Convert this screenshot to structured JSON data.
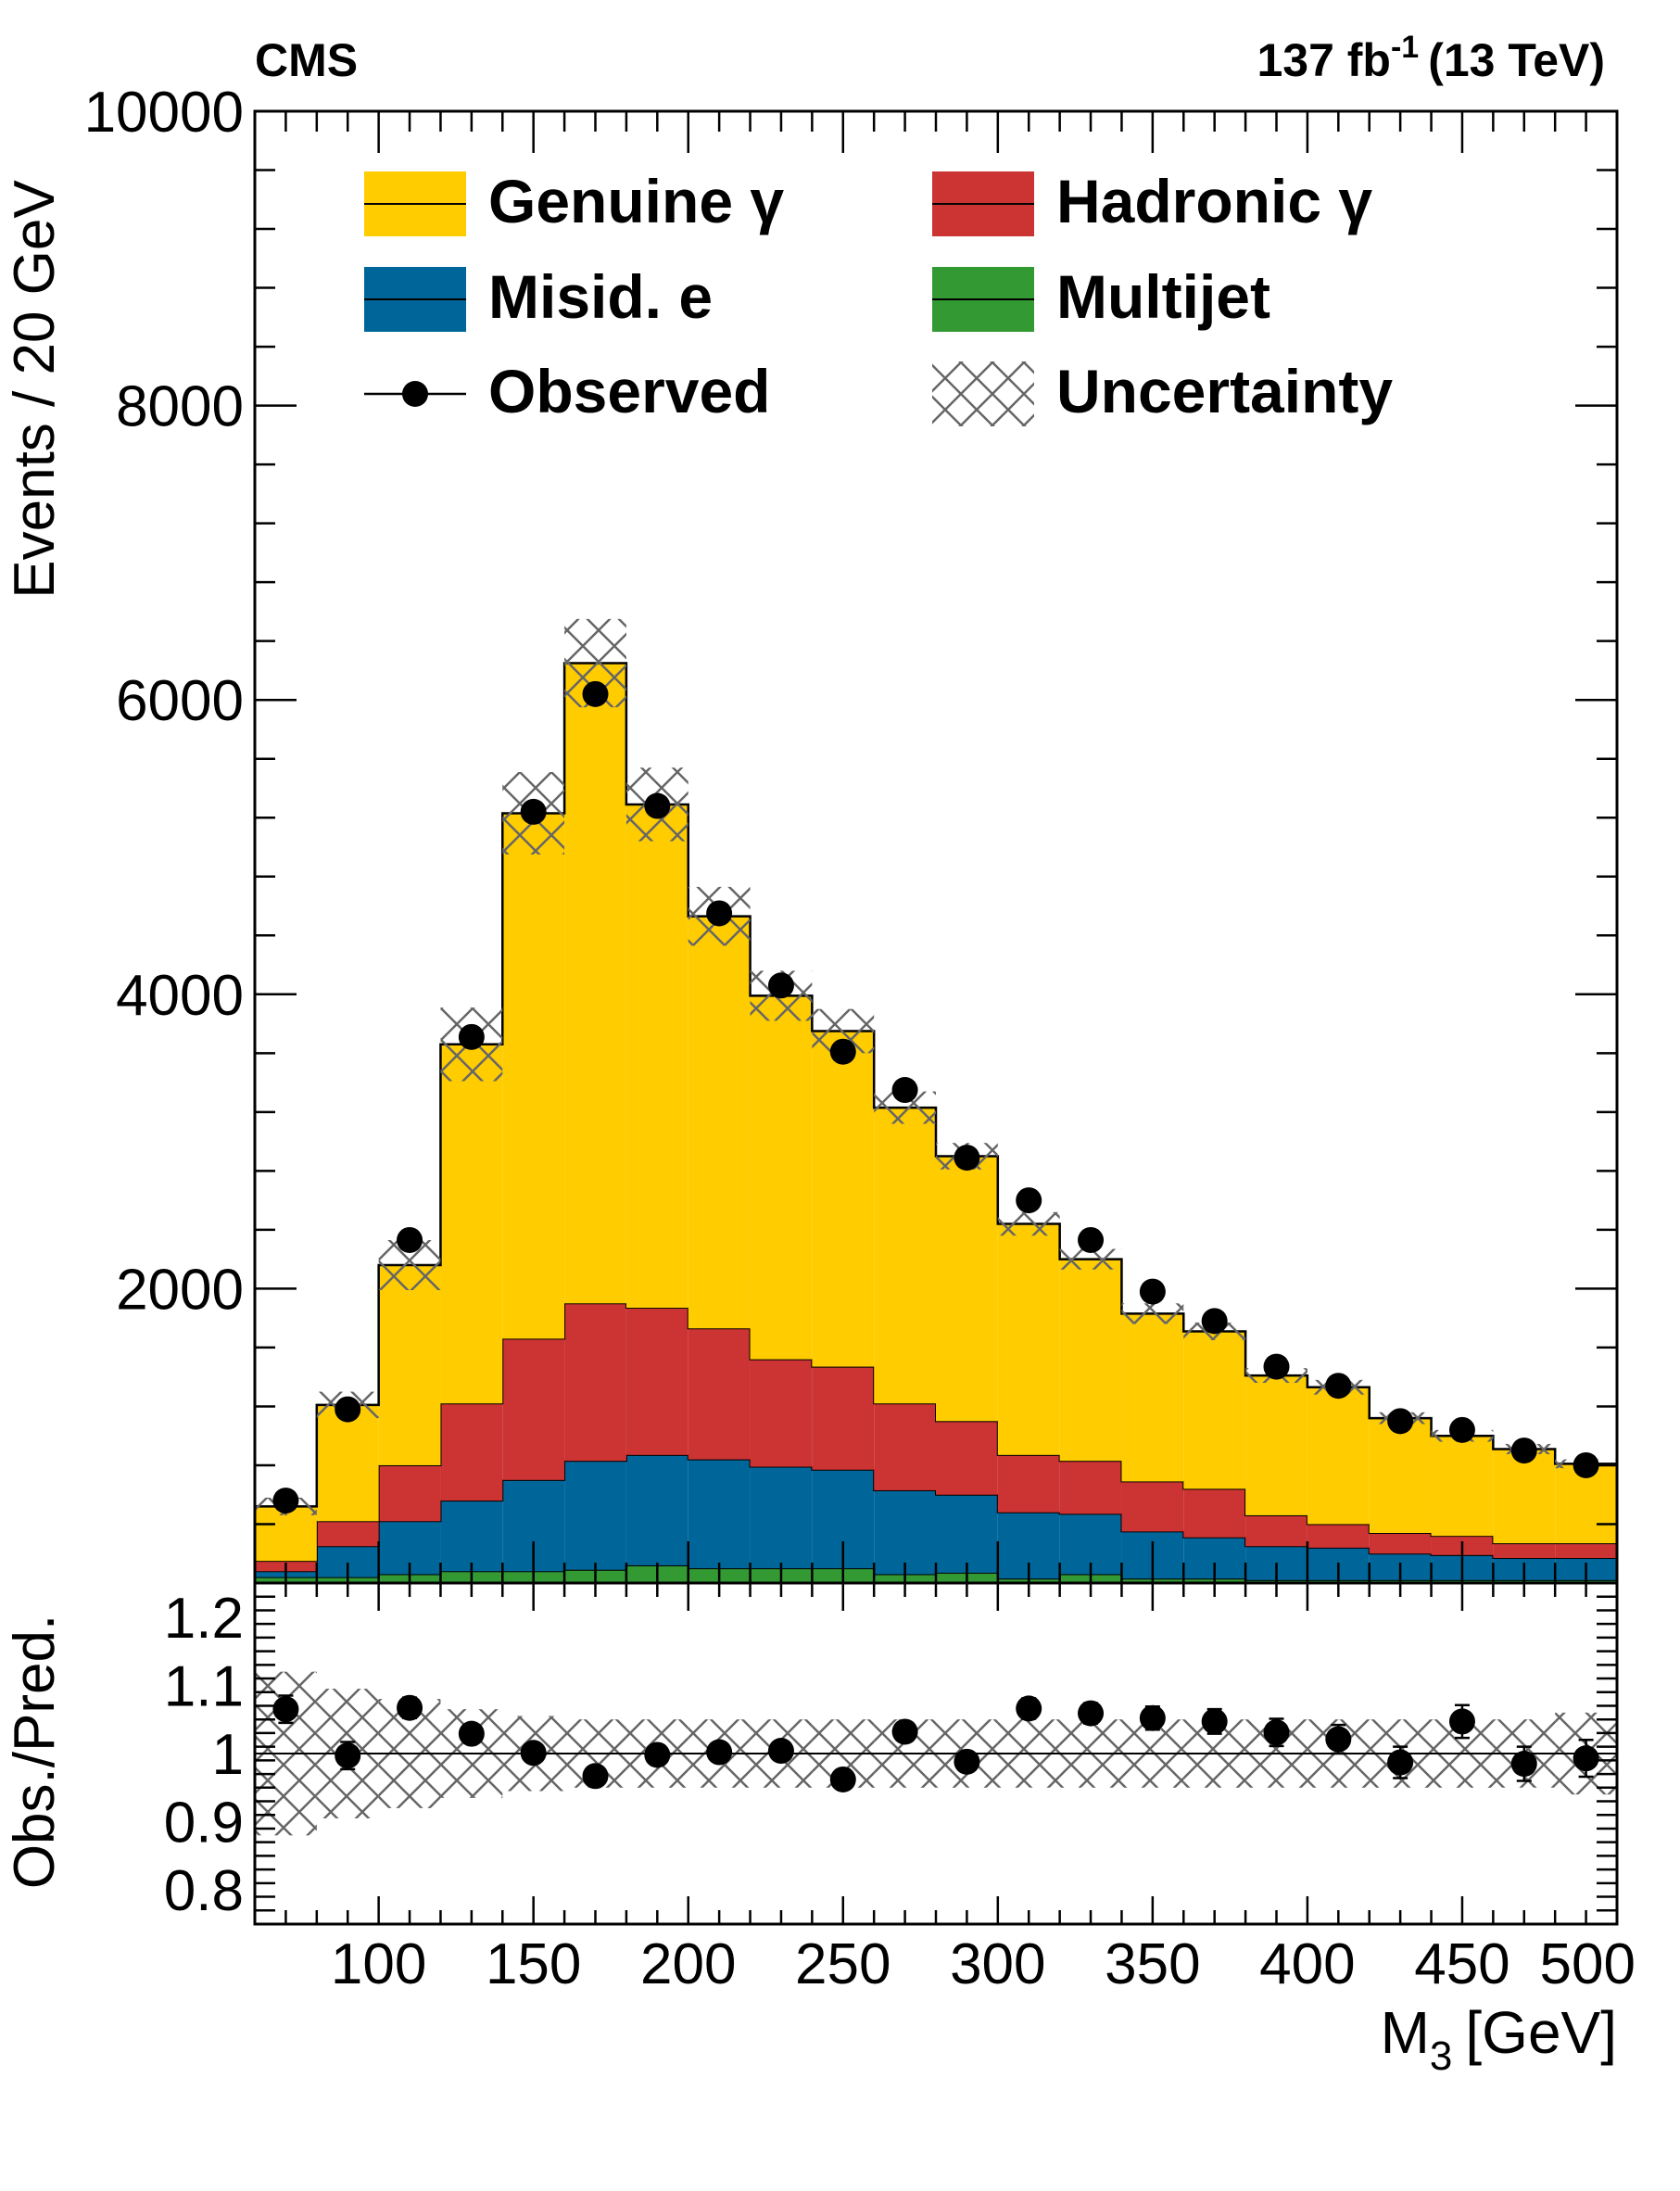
{
  "header": {
    "experiment": "CMS",
    "lumi_prefix": "137 fb",
    "lumi_exp": "-1",
    "lumi_suffix": "(13 TeV)"
  },
  "colors": {
    "genuine": "#ffcc00",
    "hadronic": "#cc3333",
    "misid": "#006699",
    "multijet": "#339933",
    "uncertainty": "#666666"
  },
  "chart_data": [
    {
      "type": "bar",
      "stacked": true,
      "ylabel": "Events / 20 GeV",
      "ylim": [
        0,
        10000
      ],
      "yticks": [
        2000,
        4000,
        6000,
        8000,
        10000
      ],
      "ytick_labels": [
        "2000",
        "4000",
        "6000",
        "8000",
        "10000"
      ],
      "xlim": [
        60,
        500
      ],
      "x": [
        70,
        90,
        110,
        130,
        150,
        170,
        190,
        210,
        230,
        250,
        270,
        290,
        310,
        330,
        350,
        370,
        390,
        410,
        430,
        450,
        470,
        490
      ],
      "bin_edges": [
        60,
        80,
        100,
        120,
        140,
        160,
        180,
        200,
        220,
        240,
        260,
        280,
        300,
        320,
        340,
        360,
        380,
        400,
        420,
        440,
        460,
        480,
        500
      ],
      "legend": {
        "placement": "top",
        "entries": [
          {
            "label": "Genuine γ",
            "kind": "fill",
            "color_key": "genuine"
          },
          {
            "label": "Hadronic γ",
            "kind": "fill",
            "color_key": "hadronic"
          },
          {
            "label": "Misid. e",
            "kind": "fill",
            "color_key": "misid"
          },
          {
            "label": "Multijet",
            "kind": "fill",
            "color_key": "multijet"
          },
          {
            "label": "Observed",
            "kind": "marker"
          },
          {
            "label": "Uncertainty",
            "kind": "hatch"
          }
        ]
      },
      "series": [
        {
          "name": "Multijet",
          "values": [
            40,
            40,
            60,
            80,
            80,
            90,
            120,
            100,
            100,
            100,
            60,
            70,
            30,
            60,
            30,
            30,
            20,
            20,
            20,
            20,
            20,
            20
          ]
        },
        {
          "name": "Misid. e",
          "values": [
            40,
            210,
            360,
            480,
            620,
            740,
            750,
            740,
            690,
            670,
            570,
            530,
            450,
            410,
            320,
            280,
            230,
            220,
            180,
            170,
            150,
            150
          ]
        },
        {
          "name": "Hadronic γ",
          "values": [
            70,
            170,
            380,
            660,
            960,
            1070,
            1000,
            890,
            730,
            700,
            590,
            500,
            390,
            360,
            340,
            330,
            210,
            160,
            140,
            130,
            100,
            100
          ]
        },
        {
          "name": "Genuine γ",
          "values": [
            370,
            790,
            1360,
            2440,
            3570,
            4350,
            3420,
            2800,
            2470,
            2280,
            2010,
            1800,
            1570,
            1370,
            1140,
            1070,
            950,
            930,
            780,
            680,
            640,
            540
          ]
        }
      ],
      "total": [
        520,
        1210,
        2160,
        3660,
        5230,
        6250,
        5290,
        4530,
        3990,
        3750,
        3230,
        2900,
        2440,
        2200,
        1830,
        1710,
        1410,
        1330,
        1120,
        1000,
        910,
        810
      ],
      "total_unc": [
        60,
        90,
        170,
        250,
        280,
        300,
        250,
        200,
        170,
        150,
        110,
        90,
        80,
        70,
        70,
        60,
        50,
        50,
        40,
        40,
        35,
        30
      ],
      "observed": [
        560,
        1180,
        2330,
        3710,
        5240,
        6040,
        5280,
        4550,
        4060,
        3610,
        3350,
        2890,
        2600,
        2330,
        1980,
        1780,
        1470,
        1340,
        1100,
        1040,
        900,
        800
      ]
    },
    {
      "type": "scatter",
      "xlabel_main": "M",
      "xlabel_sub": "3",
      "xlabel_unit": "[GeV]",
      "ylabel": "Obs./Pred.",
      "ylim": [
        0.75,
        1.25
      ],
      "yticks": [
        0.8,
        0.9,
        1.0,
        1.1,
        1.2
      ],
      "ytick_labels": [
        "0.8",
        "0.9",
        "1",
        "1.1",
        "1.2"
      ],
      "xticks": [
        100,
        150,
        200,
        250,
        300,
        350,
        400,
        450,
        500
      ],
      "xtick_labels": [
        "100",
        "150",
        "200",
        "250",
        "300",
        "350",
        "400",
        "450",
        "500"
      ],
      "x": [
        70,
        90,
        110,
        130,
        150,
        170,
        190,
        210,
        230,
        250,
        270,
        290,
        310,
        330,
        350,
        370,
        390,
        410,
        430,
        450,
        470,
        490
      ],
      "ratio": [
        1.065,
        0.997,
        1.067,
        1.029,
        1.001,
        0.967,
        0.998,
        1.002,
        1.004,
        0.962,
        1.032,
        0.988,
        1.066,
        1.059,
        1.052,
        1.047,
        1.031,
        1.021,
        0.987,
        1.047,
        0.985,
        0.993
      ],
      "ratio_err": [
        0.02,
        0.02,
        0.015,
        0.012,
        0.01,
        0.01,
        0.01,
        0.01,
        0.01,
        0.01,
        0.012,
        0.013,
        0.015,
        0.015,
        0.017,
        0.018,
        0.02,
        0.021,
        0.023,
        0.024,
        0.025,
        0.027
      ],
      "band": [
        0.12,
        0.095,
        0.08,
        0.065,
        0.055,
        0.05,
        0.05,
        0.05,
        0.05,
        0.05,
        0.05,
        0.05,
        0.05,
        0.05,
        0.05,
        0.05,
        0.05,
        0.05,
        0.05,
        0.05,
        0.05,
        0.06
      ]
    }
  ]
}
